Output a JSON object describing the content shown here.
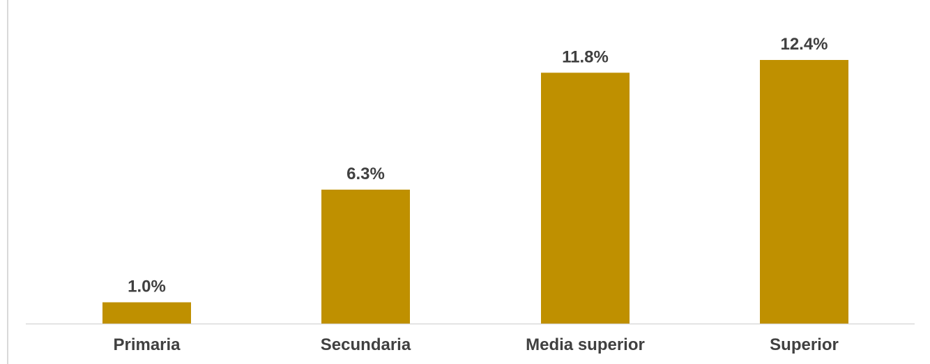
{
  "chart_data": {
    "type": "bar",
    "categories": [
      "Primaria",
      "Secundaria",
      "Media superior",
      "Superior"
    ],
    "values": [
      1.0,
      6.3,
      11.8,
      12.4
    ],
    "value_labels": [
      "1.0%",
      "6.3%",
      "11.8%",
      "12.4%"
    ],
    "title": "",
    "xlabel": "",
    "ylabel": "",
    "ylim": [
      0,
      12.4
    ],
    "grid": false,
    "legend": "none",
    "bar_color": "#BF9000",
    "axis_color": "#d9d9d9",
    "label_color": "#404040"
  }
}
